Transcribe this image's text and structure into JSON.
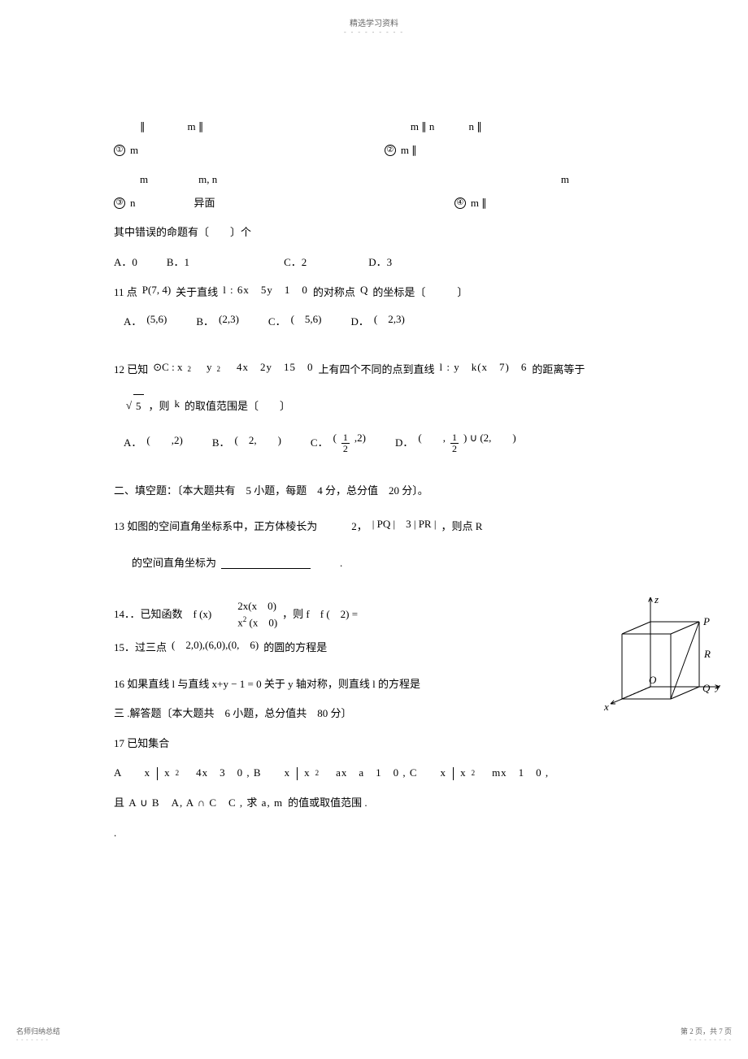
{
  "header": {
    "title": "精选学习资料",
    "dots": "- - - - - - - - -"
  },
  "prop1": {
    "circle": "①",
    "line1a": "∥",
    "line1b": "m ∥",
    "line2": "m"
  },
  "prop2": {
    "circle": "②",
    "line1a": "m ∥ n",
    "line1b": "n ∥",
    "line2": "m ∥"
  },
  "prop3": {
    "circle": "③",
    "line1a": "m",
    "line1b": "m, n",
    "line2": "n",
    "line3": "异面"
  },
  "prop4": {
    "circle": "④",
    "line1a": "m ∥",
    "line1b": "m"
  },
  "errline": {
    "text": "其中错误的命题有〔　　〕个"
  },
  "q10opts": {
    "A": "A．0",
    "B": "B．1",
    "C": "C．2",
    "D": "D．3"
  },
  "q11": {
    "stem1": "11 点",
    "P": "P(7, 4)",
    "stem2": "关于直线",
    "line": "l : 6x　5y　1　0",
    "stem3": "的对称点",
    "Q": "Q",
    "stem4": "的坐标是〔　　　〕",
    "optA_l": "A．",
    "optA": "(5,6)",
    "optB_l": "B．",
    "optB": "(2,3)",
    "optC_l": "C．",
    "optC": "(　5,6)",
    "optD_l": "D．",
    "optD": "(　2,3)"
  },
  "q12": {
    "stem1": "12 已知",
    "circ": "⊙C : x",
    "sq": "2",
    "plus": "　y",
    "sq2": "2",
    "rest": "　4x　2y　15　0",
    "stem2": "上有四个不同的点到直线",
    "line": "l : y　k(x　7)　6",
    "stem3": "的距离等于",
    "sqrt": "5",
    "stem4": "，则",
    "k": "k",
    "stem5": "的取值范围是〔　　〕",
    "optA_l": "A．",
    "optA": "(　　,2)",
    "optB_l": "B．",
    "optB": "(　2,　　)",
    "optC_l": "C．",
    "optC_n": "1",
    "optC_d": "2",
    "optC_r": ",2)",
    "optD_l": "D．",
    "optD_l2": "(　　,",
    "optD_n": "1",
    "optD_d": "2",
    "optD_r": ") ∪ (2,　　)"
  },
  "sec2": {
    "title": "二、填空题：〔本大题共有　5 小题，每题　4 分，总分值　20 分〕。"
  },
  "q13": {
    "line1a": "13  如图的空间直角坐标系中，正方体棱长为",
    "line1b": "2，",
    "pq": "| PQ |　3 | PR |",
    "line1c": "，则点  R",
    "line2": "的空间直角坐标为",
    "period": "."
  },
  "q14": {
    "pre": "14．．已知函数　f (x)",
    "top": "2x(x　0)",
    "bot": "x",
    "botsq": "2",
    "bot2": " (x　0)",
    "post": "，则  f　f (　2)  ="
  },
  "q15": {
    "pre": "15．过三点",
    "pts": "(　2,0),(6,0),(0,　6)",
    "post": "的圆的方程是"
  },
  "q16": {
    "text": "16 如果直线  l 与直线  x+y − 1 = 0 关于  y 轴对称，则直线  l 的方程是"
  },
  "sec3": {
    "title": "三 .解答题〔本大题共　6 小题，总分值共　80 分〕"
  },
  "q17": {
    "stem": "17 已知集合",
    "A": "A　　x",
    "Aexp": "x",
    "Asq": "2",
    "Arest": "　4x　3　0  , B　　x",
    "Bexp": "x",
    "Bsq": "2",
    "Brest": "　ax　a　1　0  , C　　x",
    "Cexp": "x",
    "Csq": "2",
    "Crest": "　mx　1　0  ,",
    "line2a": "且 A ∪ B　A, A ∩ C　C , 求 a, m",
    "line2b": "的值或取值范围 .",
    "dot": "."
  },
  "footer": {
    "left": "名师归纳总结",
    "leftdots": "- - - - - - -",
    "right": "第 2 页，共 7 页",
    "rightdots": "- - - - - - - - -"
  },
  "figure": {
    "z_label": "z",
    "p_label": "P",
    "r_label": "R",
    "o_label": "O",
    "q_label": "Q",
    "y_label": "y",
    "x_label": "x",
    "stroke": "#000",
    "dash": "3,2"
  }
}
